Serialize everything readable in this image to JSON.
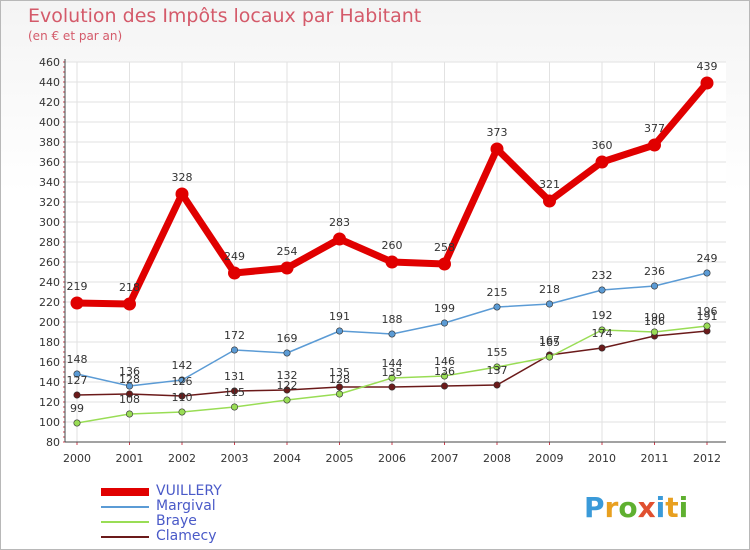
{
  "title": "Evolution des Impôts locaux par Habitant",
  "subtitle": "(en € et par an)",
  "logo": "Proxiti",
  "chart_data": {
    "type": "line",
    "title": "Evolution des Impôts locaux par Habitant",
    "subtitle": "(en € et par an)",
    "xlabel": "",
    "ylabel": "",
    "x": [
      2000,
      2001,
      2002,
      2003,
      2004,
      2005,
      2006,
      2007,
      2008,
      2009,
      2010,
      2011,
      2012
    ],
    "ylim": [
      80,
      460
    ],
    "yticks": [
      80,
      100,
      120,
      140,
      160,
      180,
      200,
      220,
      240,
      260,
      280,
      300,
      320,
      340,
      360,
      380,
      400,
      420,
      440,
      460
    ],
    "grid": true,
    "legend_position": "bottom-left",
    "series": [
      {
        "name": "VUILLERY",
        "color": "#e00000",
        "values": [
          219,
          218,
          328,
          249,
          254,
          283,
          260,
          258,
          373,
          321,
          360,
          377,
          439
        ]
      },
      {
        "name": "Margival",
        "color": "#5b9bd5",
        "values": [
          148,
          136,
          142,
          172,
          169,
          191,
          188,
          199,
          215,
          218,
          232,
          236,
          249
        ]
      },
      {
        "name": "Braye",
        "color": "#99dd55",
        "values": [
          99,
          108,
          110,
          115,
          122,
          128,
          144,
          146,
          155,
          165,
          192,
          190,
          196
        ]
      },
      {
        "name": "Clamecy",
        "color": "#6b1a1a",
        "values": [
          127,
          128,
          126,
          131,
          132,
          135,
          135,
          136,
          137,
          167,
          174,
          186,
          191
        ]
      }
    ]
  }
}
